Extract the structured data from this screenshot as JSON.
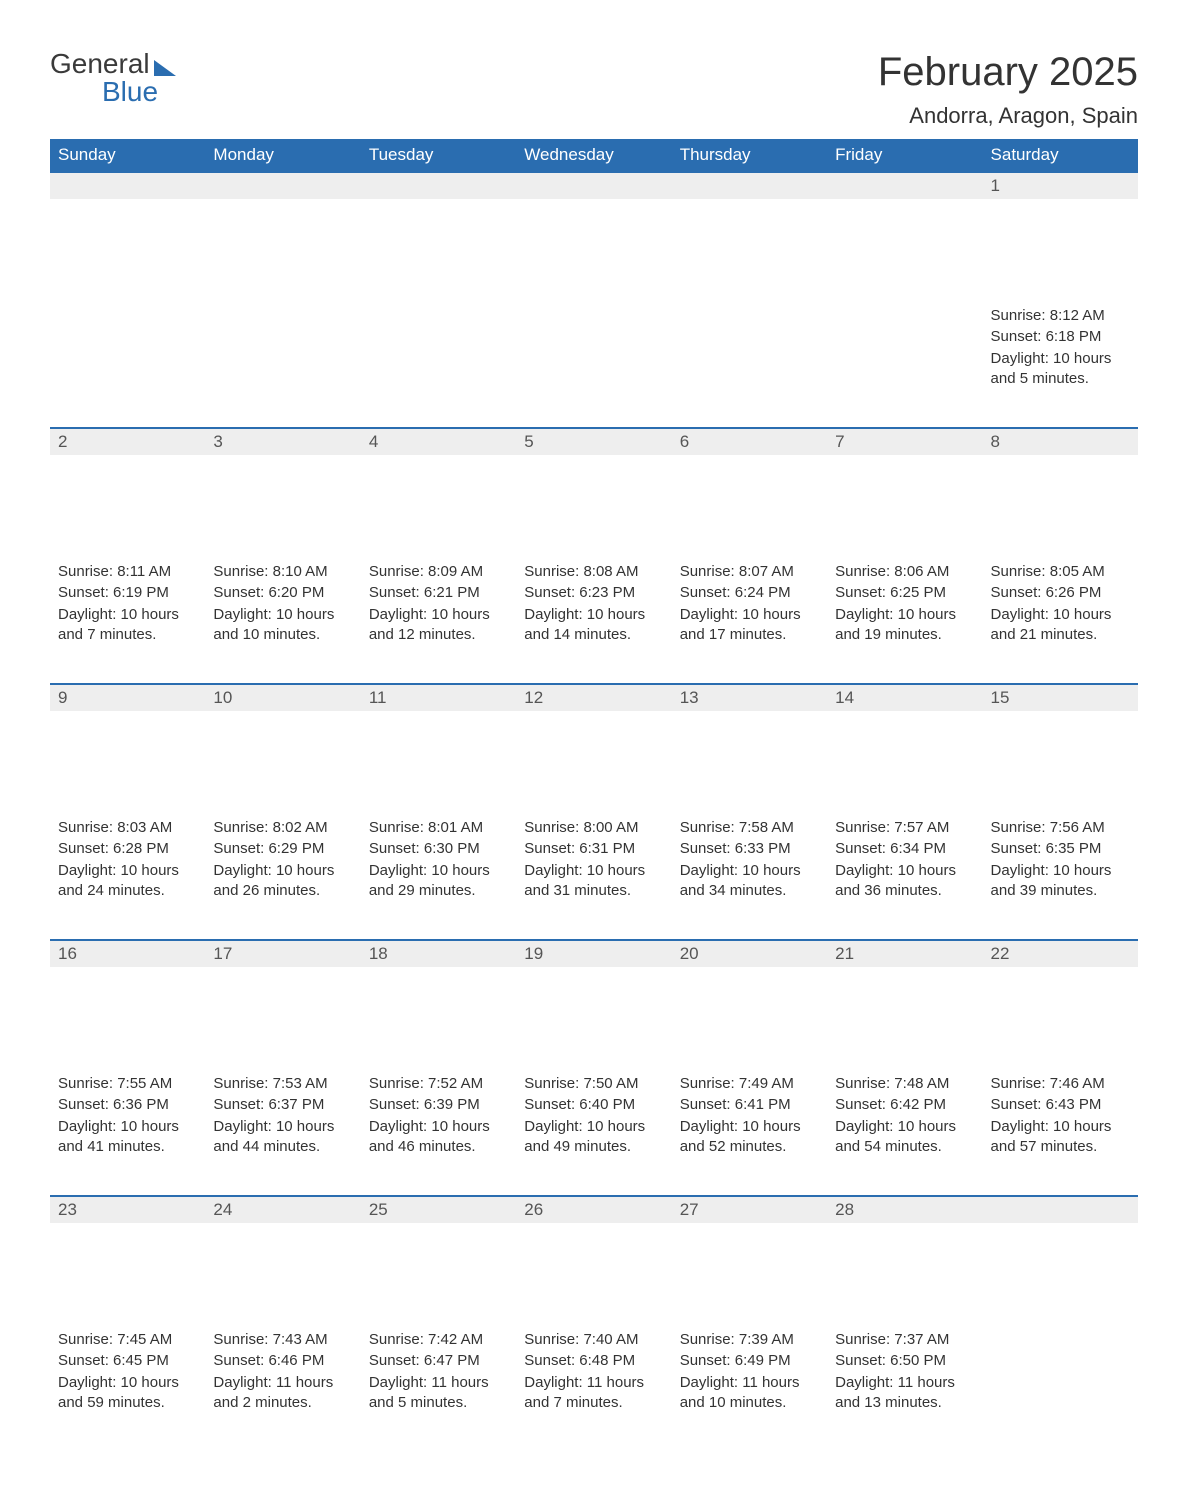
{
  "logo": {
    "word1": "General",
    "word2": "Blue"
  },
  "title": "February 2025",
  "location": "Andorra, Aragon, Spain",
  "colors": {
    "brand": "#2a6db0",
    "header_bg": "#2a6db0",
    "header_text": "#ffffff",
    "daynum_bg": "#eeeeee",
    "body_text": "#333333",
    "background": "#ffffff"
  },
  "weekdays": [
    "Sunday",
    "Monday",
    "Tuesday",
    "Wednesday",
    "Thursday",
    "Friday",
    "Saturday"
  ],
  "labels": {
    "sunrise": "Sunrise:",
    "sunset": "Sunset:",
    "daylight": "Daylight:"
  },
  "grid": {
    "rows": 5,
    "cols": 7,
    "first_day_col": 6,
    "days_in_month": 28
  },
  "days": [
    {
      "n": 1,
      "sunrise": "8:12 AM",
      "sunset": "6:18 PM",
      "daylight": "10 hours and 5 minutes."
    },
    {
      "n": 2,
      "sunrise": "8:11 AM",
      "sunset": "6:19 PM",
      "daylight": "10 hours and 7 minutes."
    },
    {
      "n": 3,
      "sunrise": "8:10 AM",
      "sunset": "6:20 PM",
      "daylight": "10 hours and 10 minutes."
    },
    {
      "n": 4,
      "sunrise": "8:09 AM",
      "sunset": "6:21 PM",
      "daylight": "10 hours and 12 minutes."
    },
    {
      "n": 5,
      "sunrise": "8:08 AM",
      "sunset": "6:23 PM",
      "daylight": "10 hours and 14 minutes."
    },
    {
      "n": 6,
      "sunrise": "8:07 AM",
      "sunset": "6:24 PM",
      "daylight": "10 hours and 17 minutes."
    },
    {
      "n": 7,
      "sunrise": "8:06 AM",
      "sunset": "6:25 PM",
      "daylight": "10 hours and 19 minutes."
    },
    {
      "n": 8,
      "sunrise": "8:05 AM",
      "sunset": "6:26 PM",
      "daylight": "10 hours and 21 minutes."
    },
    {
      "n": 9,
      "sunrise": "8:03 AM",
      "sunset": "6:28 PM",
      "daylight": "10 hours and 24 minutes."
    },
    {
      "n": 10,
      "sunrise": "8:02 AM",
      "sunset": "6:29 PM",
      "daylight": "10 hours and 26 minutes."
    },
    {
      "n": 11,
      "sunrise": "8:01 AM",
      "sunset": "6:30 PM",
      "daylight": "10 hours and 29 minutes."
    },
    {
      "n": 12,
      "sunrise": "8:00 AM",
      "sunset": "6:31 PM",
      "daylight": "10 hours and 31 minutes."
    },
    {
      "n": 13,
      "sunrise": "7:58 AM",
      "sunset": "6:33 PM",
      "daylight": "10 hours and 34 minutes."
    },
    {
      "n": 14,
      "sunrise": "7:57 AM",
      "sunset": "6:34 PM",
      "daylight": "10 hours and 36 minutes."
    },
    {
      "n": 15,
      "sunrise": "7:56 AM",
      "sunset": "6:35 PM",
      "daylight": "10 hours and 39 minutes."
    },
    {
      "n": 16,
      "sunrise": "7:55 AM",
      "sunset": "6:36 PM",
      "daylight": "10 hours and 41 minutes."
    },
    {
      "n": 17,
      "sunrise": "7:53 AM",
      "sunset": "6:37 PM",
      "daylight": "10 hours and 44 minutes."
    },
    {
      "n": 18,
      "sunrise": "7:52 AM",
      "sunset": "6:39 PM",
      "daylight": "10 hours and 46 minutes."
    },
    {
      "n": 19,
      "sunrise": "7:50 AM",
      "sunset": "6:40 PM",
      "daylight": "10 hours and 49 minutes."
    },
    {
      "n": 20,
      "sunrise": "7:49 AM",
      "sunset": "6:41 PM",
      "daylight": "10 hours and 52 minutes."
    },
    {
      "n": 21,
      "sunrise": "7:48 AM",
      "sunset": "6:42 PM",
      "daylight": "10 hours and 54 minutes."
    },
    {
      "n": 22,
      "sunrise": "7:46 AM",
      "sunset": "6:43 PM",
      "daylight": "10 hours and 57 minutes."
    },
    {
      "n": 23,
      "sunrise": "7:45 AM",
      "sunset": "6:45 PM",
      "daylight": "10 hours and 59 minutes."
    },
    {
      "n": 24,
      "sunrise": "7:43 AM",
      "sunset": "6:46 PM",
      "daylight": "11 hours and 2 minutes."
    },
    {
      "n": 25,
      "sunrise": "7:42 AM",
      "sunset": "6:47 PM",
      "daylight": "11 hours and 5 minutes."
    },
    {
      "n": 26,
      "sunrise": "7:40 AM",
      "sunset": "6:48 PM",
      "daylight": "11 hours and 7 minutes."
    },
    {
      "n": 27,
      "sunrise": "7:39 AM",
      "sunset": "6:49 PM",
      "daylight": "11 hours and 10 minutes."
    },
    {
      "n": 28,
      "sunrise": "7:37 AM",
      "sunset": "6:50 PM",
      "daylight": "11 hours and 13 minutes."
    }
  ]
}
